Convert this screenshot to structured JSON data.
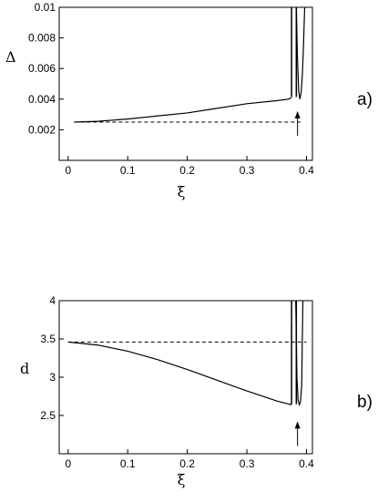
{
  "chart_data": [
    {
      "type": "line",
      "panel_label": "a)",
      "xlabel": "ξ",
      "ylabel": "Δ",
      "xlim": [
        -0.015,
        0.41
      ],
      "ylim": [
        0.0,
        0.01
      ],
      "xticks": [
        0,
        0.1,
        0.2,
        0.3,
        0.4
      ],
      "xtick_labels": [
        "0",
        "0.1",
        "0.2",
        "0.3",
        "0.4"
      ],
      "yticks": [
        0.002,
        0.004,
        0.006,
        0.008,
        0.01
      ],
      "ytick_labels": [
        "0.002",
        "0.004",
        "0.006",
        "0.008",
        "0.01"
      ],
      "grid": false,
      "reference_line": {
        "style": "dashed",
        "y": 0.0025,
        "x": [
          0.01,
          0.39
        ]
      },
      "series": [
        {
          "style": "solid",
          "x": [
            0.01,
            0.05,
            0.1,
            0.15,
            0.2,
            0.25,
            0.3,
            0.35,
            0.37,
            0.375
          ],
          "y": [
            0.0025,
            0.00255,
            0.0027,
            0.0029,
            0.0031,
            0.0034,
            0.0037,
            0.0039,
            0.004,
            0.0041
          ]
        }
      ],
      "divergence_x": [
        0.375,
        0.383
      ],
      "dip": {
        "x": [
          0.383,
          0.385,
          0.387,
          0.389,
          0.391,
          0.393,
          0.395,
          0.397
        ],
        "y": [
          0.01,
          0.0065,
          0.0045,
          0.004,
          0.0044,
          0.0055,
          0.0075,
          0.01
        ]
      },
      "arrow": {
        "x": 0.385,
        "y_from": 0.0016,
        "y_to": 0.0031
      }
    },
    {
      "type": "line",
      "panel_label": "b)",
      "xlabel": "ξ",
      "ylabel": "d",
      "xlim": [
        -0.015,
        0.41
      ],
      "ylim": [
        2.0,
        4.0
      ],
      "xticks": [
        0,
        0.1,
        0.2,
        0.3,
        0.4
      ],
      "xtick_labels": [
        "0",
        "0.1",
        "0.2",
        "0.3",
        "0.4"
      ],
      "yticks": [
        2.5,
        3,
        3.5,
        4
      ],
      "ytick_labels": [
        "2.5",
        "3",
        "3.5",
        "4"
      ],
      "grid": false,
      "reference_line": {
        "style": "dashed",
        "y": 3.46,
        "x": [
          0.0,
          0.4
        ]
      },
      "series": [
        {
          "style": "solid",
          "x": [
            0.0,
            0.05,
            0.1,
            0.15,
            0.2,
            0.25,
            0.3,
            0.35,
            0.37,
            0.375
          ],
          "y": [
            3.46,
            3.42,
            3.34,
            3.23,
            3.1,
            2.96,
            2.82,
            2.69,
            2.65,
            2.64
          ]
        }
      ],
      "divergence_x": [
        0.375,
        0.383
      ],
      "dip": {
        "x": [
          0.382,
          0.384,
          0.386,
          0.388,
          0.39,
          0.392,
          0.394
        ],
        "y": [
          4.0,
          3.0,
          2.7,
          2.64,
          2.68,
          2.9,
          4.0
        ]
      },
      "arrow": {
        "x": 0.385,
        "y_from": 2.1,
        "y_to": 2.4
      }
    }
  ]
}
